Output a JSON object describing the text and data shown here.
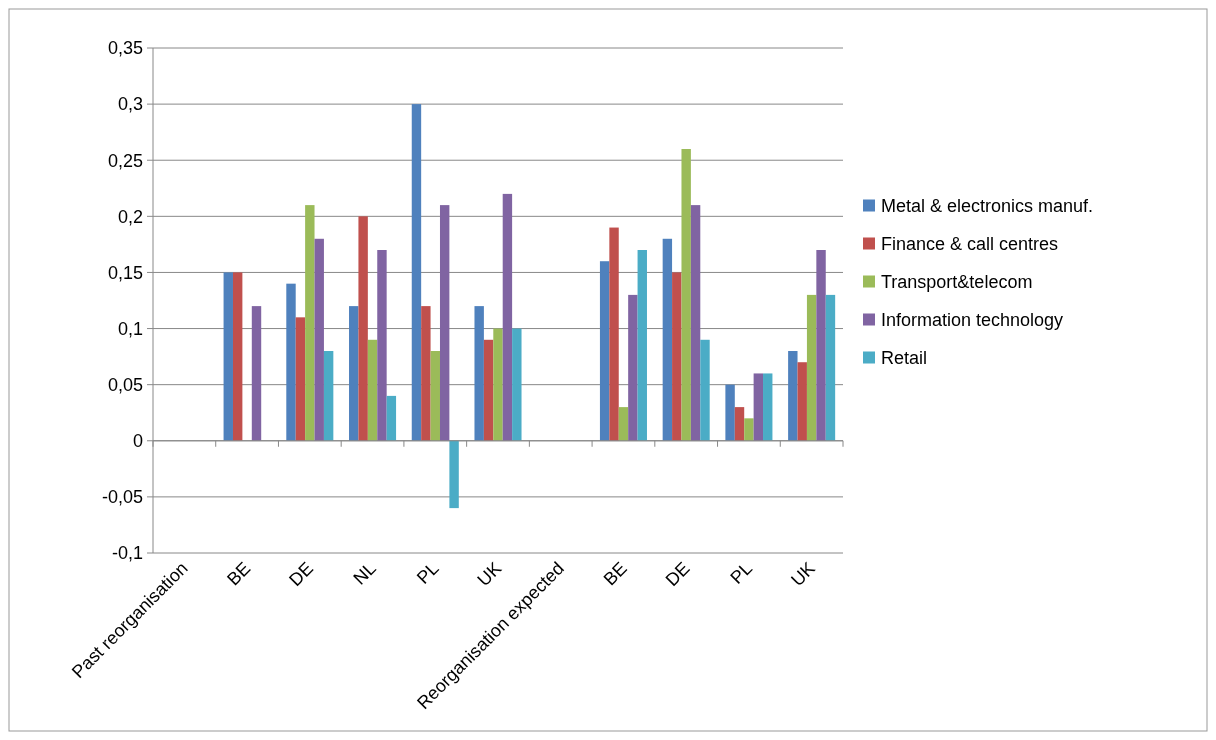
{
  "chart_data": {
    "type": "bar",
    "categories": [
      "Past reorganisation",
      "BE",
      "DE",
      "NL",
      "PL",
      "UK",
      "Reorganisation expected",
      "BE",
      "DE",
      "PL",
      "UK"
    ],
    "series": [
      {
        "name": "Metal & electronics manuf.",
        "color": "#4f81bd",
        "values": [
          null,
          0.15,
          0.14,
          0.12,
          0.3,
          0.12,
          null,
          0.16,
          0.18,
          0.05,
          0.08
        ]
      },
      {
        "name": "Finance & call centres",
        "color": "#c0504d",
        "values": [
          null,
          0.15,
          0.11,
          0.2,
          0.12,
          0.09,
          null,
          0.19,
          0.15,
          0.03,
          0.07
        ]
      },
      {
        "name": "Transport&telecom",
        "color": "#9bbb59",
        "values": [
          null,
          null,
          0.21,
          0.09,
          0.08,
          0.1,
          null,
          0.03,
          0.26,
          0.02,
          0.13
        ]
      },
      {
        "name": "Information technology",
        "color": "#8064a2",
        "values": [
          null,
          0.12,
          0.18,
          0.17,
          0.21,
          0.22,
          null,
          0.13,
          0.21,
          0.06,
          0.17
        ]
      },
      {
        "name": "Retail",
        "color": "#4bacc6",
        "values": [
          null,
          null,
          0.08,
          0.04,
          -0.06,
          0.1,
          null,
          0.17,
          0.09,
          0.06,
          0.13
        ]
      }
    ],
    "ylim": [
      -0.1,
      0.35
    ],
    "yticks": [
      {
        "value": -0.1,
        "label": "-0,1"
      },
      {
        "value": -0.05,
        "label": "-0,05"
      },
      0,
      {
        "value": 0.05,
        "label": "0,05"
      },
      {
        "value": 0.1,
        "label": "0,1"
      },
      {
        "value": 0.15,
        "label": "0,15"
      },
      {
        "value": 0.2,
        "label": "0,2"
      },
      {
        "value": 0.25,
        "label": "0,25"
      },
      {
        "value": 0.3,
        "label": "0,3"
      },
      {
        "value": 0.35,
        "label": "0,35"
      }
    ],
    "grid": "y",
    "legend": "right"
  }
}
